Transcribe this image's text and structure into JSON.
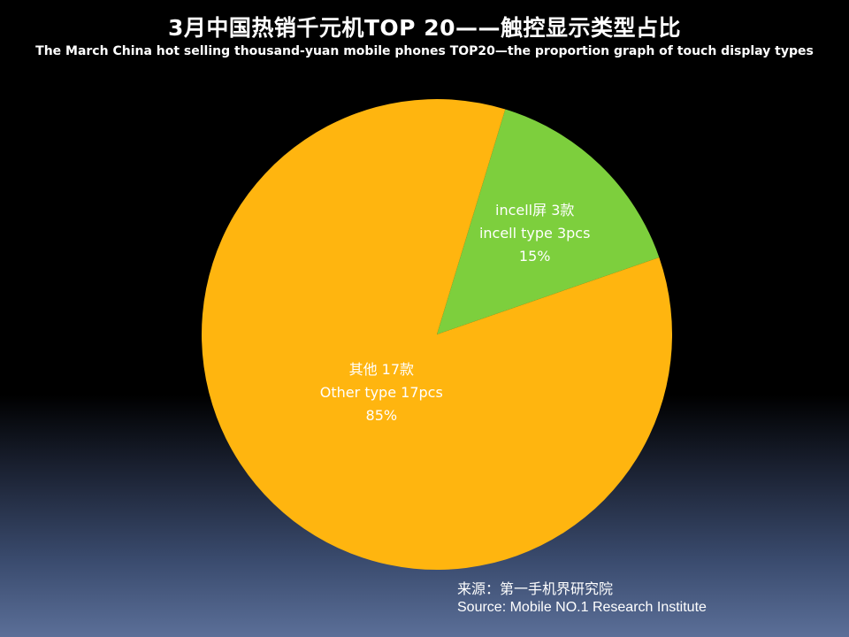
{
  "title": "3月中国热销千元机TOP 20——触控显示类型占比",
  "subtitle": "The March China hot selling thousand-yuan mobile phones TOP20—the proportion graph of touch display types",
  "source": {
    "line1": "来源：第一手机界研究院",
    "line2": "Source: Mobile NO.1 Research Institute"
  },
  "colors": {
    "incell": "#7dcf3d",
    "other": "#ffb50f",
    "label": "#ffffff"
  },
  "chart_data": {
    "type": "pie",
    "title": "3月中国热销千元机TOP 20——触控显示类型占比",
    "subtitle": "The March China hot selling thousand-yuan mobile phones TOP20—the proportion graph of touch display types",
    "slices": [
      {
        "name": "incell",
        "value": 3,
        "percent": 15,
        "label_lines": [
          "incell屏 3款",
          "incell type 3pcs",
          "15%"
        ]
      },
      {
        "name": "other",
        "value": 17,
        "percent": 85,
        "label_lines": [
          "其他 17款",
          "Other type 17pcs",
          "85%"
        ]
      }
    ]
  }
}
